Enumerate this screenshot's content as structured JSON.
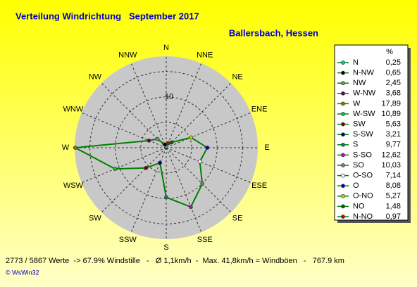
{
  "chart_data": {
    "type": "radar",
    "title": "Verteilung Windrichtung   September 2017",
    "subtitle": "Ballersbach, Hessen",
    "axis_labels": [
      "N",
      "NNE",
      "NE",
      "ENE",
      "E",
      "ESE",
      "SE",
      "SSE",
      "S",
      "SSW",
      "SW",
      "WSW",
      "W",
      "WNW",
      "NW",
      "NNW"
    ],
    "legend_header": "%",
    "categories": [
      "N",
      "N-NW",
      "NW",
      "W-NW",
      "W",
      "W-SW",
      "SW",
      "S-SW",
      "S",
      "S-SO",
      "SO",
      "O-SO",
      "O",
      "O-NO",
      "NO",
      "N-NO"
    ],
    "values": [
      0.25,
      0.65,
      2.45,
      3.68,
      17.89,
      10.89,
      5.63,
      3.21,
      9.77,
      12.62,
      10.03,
      7.14,
      8.08,
      5.27,
      1.48,
      0.97
    ],
    "value_labels": [
      "0,25",
      "0,65",
      "2,45",
      "3,68",
      "17,89",
      "10,89",
      "5,63",
      "3,21",
      "9,77",
      "12,62",
      "10,03",
      "7,14",
      "8,08",
      "5,27",
      "1,48",
      "0,97"
    ],
    "colors": [
      "#00cccc",
      "#000000",
      "#669966",
      "#660066",
      "#808000",
      "#00cc33",
      "#800000",
      "#000080",
      "#008080",
      "#cc00cc",
      "#808080",
      "#ffffff",
      "#0000cc",
      "#cccc00",
      "#006600",
      "#cc0000"
    ],
    "line_color": "#008000",
    "rlim": [
      0,
      18
    ],
    "rticks": [
      10
    ],
    "rgrid": [
      5,
      10,
      15
    ],
    "footer": "2773 / 5867 Werte  -> 67.9% Windstille   -   Ø 1,1km/h  -  Max. 41,8km/h = Windböen   -   767.9 km",
    "copyright": "© WsWin32"
  }
}
